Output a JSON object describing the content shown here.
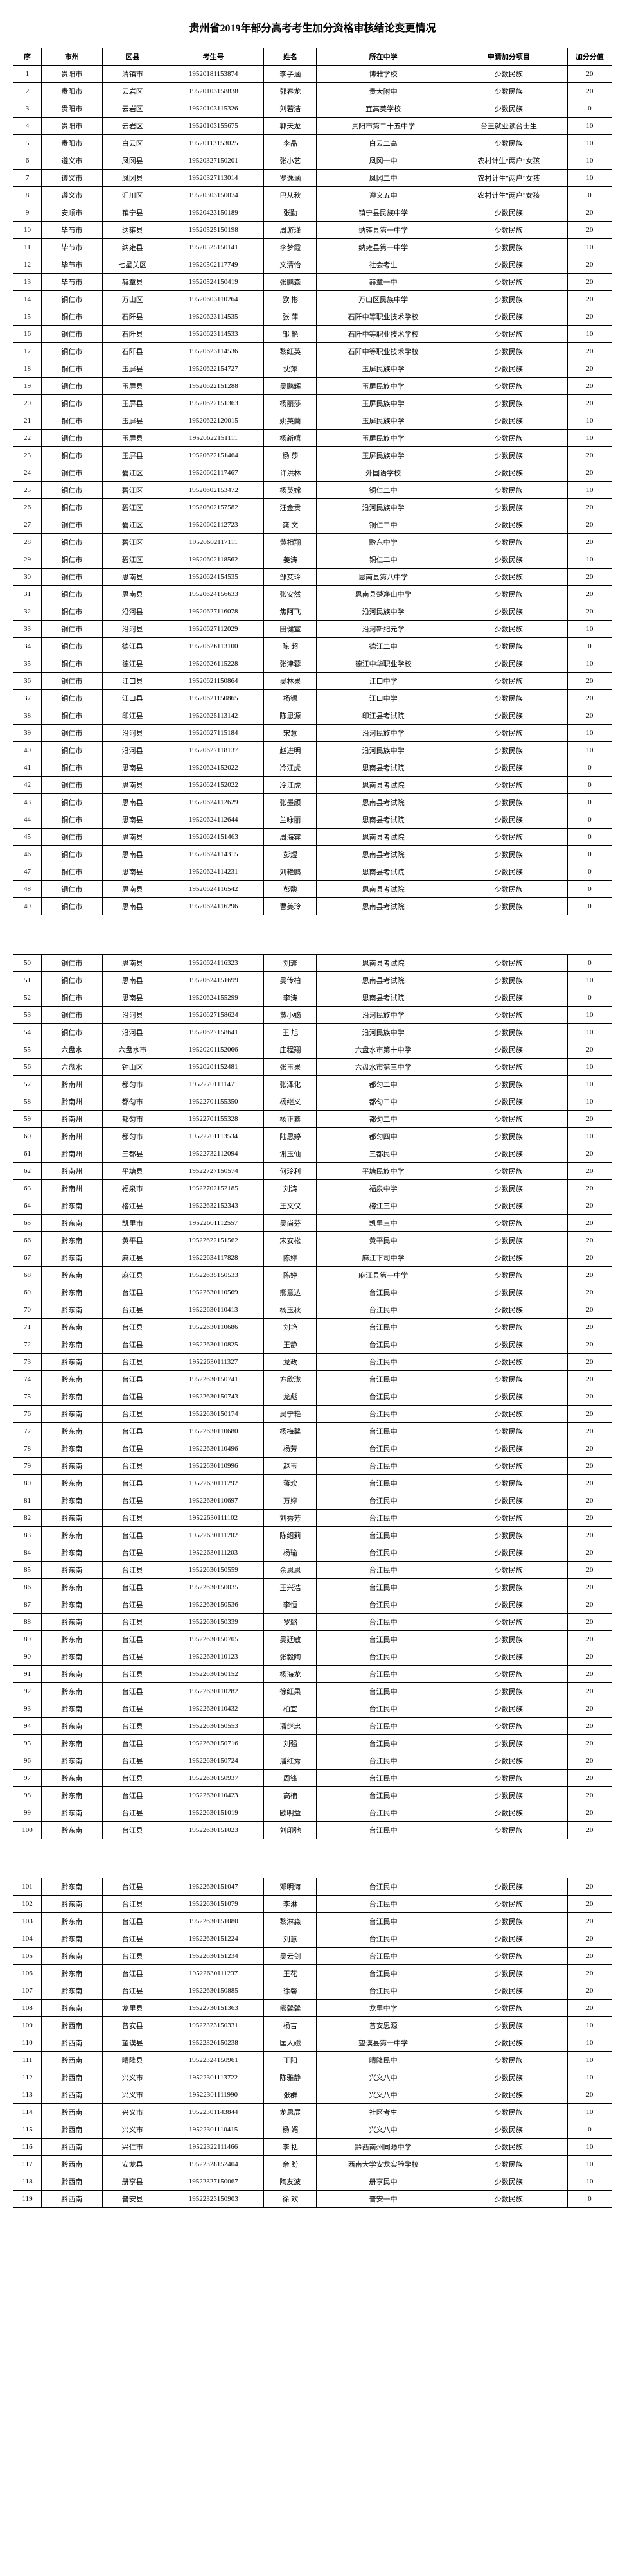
{
  "title": "贵州省2019年部分高考考生加分资格审核结论变更情况",
  "headers": [
    "序",
    "市州",
    "区县",
    "考生号",
    "姓名",
    "所在中学",
    "申请加分项目",
    "加分分值"
  ],
  "rows": [
    [
      1,
      "贵阳市",
      "清镇市",
      "19520181153874",
      "李子涵",
      "博雅学校",
      "少数民族",
      20
    ],
    [
      2,
      "贵阳市",
      "云岩区",
      "19520103158838",
      "郭春龙",
      "贵大附中",
      "少数民族",
      20
    ],
    [
      3,
      "贵阳市",
      "云岩区",
      "19520103115326",
      "刘若洁",
      "宜高美学校",
      "少数民族",
      0
    ],
    [
      4,
      "贵阳市",
      "云岩区",
      "19520103155675",
      "郭天龙",
      "贵阳市第二十五中学",
      "台王就业读台士生",
      10
    ],
    [
      5,
      "贵阳市",
      "白云区",
      "19520113153025",
      "李晶",
      "白云二高",
      "少数民族",
      10
    ],
    [
      6,
      "遵义市",
      "凤冈县",
      "19520327150201",
      "张小艺",
      "凤冈一中",
      "农村计生\"两户\"女孩",
      10
    ],
    [
      7,
      "遵义市",
      "凤冈县",
      "19520327113014",
      "罗逸涵",
      "凤冈二中",
      "农村计生\"两户\"女孩",
      10
    ],
    [
      8,
      "遵义市",
      "汇川区",
      "19520303150074",
      "巴从秋",
      "遵义五中",
      "农村计生\"两户\"女孩",
      0
    ],
    [
      9,
      "安顺市",
      "镇宁县",
      "19520423150189",
      "张勤",
      "镇宁县民族中学",
      "少数民族",
      20
    ],
    [
      10,
      "毕节市",
      "纳雍县",
      "19520525150198",
      "周游瑾",
      "纳雍县第一中学",
      "少数民族",
      20
    ],
    [
      11,
      "毕节市",
      "纳雍县",
      "19520525150141",
      "李梦霞",
      "纳雍县第一中学",
      "少数民族",
      10
    ],
    [
      12,
      "毕节市",
      "七星关区",
      "19520502117749",
      "文清怡",
      "社会考生",
      "少数民族",
      20
    ],
    [
      13,
      "毕节市",
      "赫章县",
      "19520524150419",
      "张鹏森",
      "赫章一中",
      "少数民族",
      20
    ],
    [
      14,
      "铜仁市",
      "万山区",
      "19520603110264",
      "欧 彬",
      "万山区民族中学",
      "少数民族",
      20
    ],
    [
      15,
      "铜仁市",
      "石阡县",
      "19520623114535",
      "张 萍",
      "石阡中等职业技术学校",
      "少数民族",
      20
    ],
    [
      16,
      "铜仁市",
      "石阡县",
      "19520623114533",
      "邹 艳",
      "石阡中等职业技术学校",
      "少数民族",
      10
    ],
    [
      17,
      "铜仁市",
      "石阡县",
      "19520623114536",
      "黎红英",
      "石阡中等职业技术学校",
      "少数民族",
      20
    ],
    [
      18,
      "铜仁市",
      "玉屏县",
      "19520622154727",
      "沈萍",
      "玉屏民族中学",
      "少数民族",
      20
    ],
    [
      19,
      "铜仁市",
      "玉屏县",
      "19520622151288",
      "吴鹏辉",
      "玉屏民族中学",
      "少数民族",
      20
    ],
    [
      20,
      "铜仁市",
      "玉屏县",
      "19520622151363",
      "杨丽莎",
      "玉屏民族中学",
      "少数民族",
      20
    ],
    [
      21,
      "铜仁市",
      "玉屏县",
      "19520622120015",
      "姚英蘭",
      "玉屏民族中学",
      "少数民族",
      10
    ],
    [
      22,
      "铜仁市",
      "玉屏县",
      "19520622151111",
      "杨新嘻",
      "玉屏民族中学",
      "少数民族",
      10
    ],
    [
      23,
      "铜仁市",
      "玉屏县",
      "19520622151464",
      "杨 莎",
      "玉屏民族中学",
      "少数民族",
      20
    ],
    [
      24,
      "铜仁市",
      "碧江区",
      "19520602117467",
      "许洪林",
      "外国语学校",
      "少数民族",
      20
    ],
    [
      25,
      "铜仁市",
      "碧江区",
      "19520602153472",
      "杨英嫦",
      "铜仁二中",
      "少数民族",
      10
    ],
    [
      26,
      "铜仁市",
      "碧江区",
      "19520602157582",
      "汪金贵",
      "沿河民族中学",
      "少数民族",
      20
    ],
    [
      27,
      "铜仁市",
      "碧江区",
      "19520602112723",
      "龚 文",
      "铜仁二中",
      "少数民族",
      20
    ],
    [
      28,
      "铜仁市",
      "碧江区",
      "19520602117111",
      "黄相翔",
      "黔东中学",
      "少数民族",
      20
    ],
    [
      29,
      "铜仁市",
      "碧江区",
      "19520602118562",
      "姜涛",
      "铜仁二中",
      "少数民族",
      10
    ],
    [
      30,
      "铜仁市",
      "思南县",
      "19520624154535",
      "邹艾玲",
      "思南县第八中学",
      "少数民族",
      20
    ],
    [
      31,
      "铜仁市",
      "思南县",
      "19520624156633",
      "张安然",
      "思南县楚净山中学",
      "少数民族",
      20
    ],
    [
      32,
      "铜仁市",
      "沿河县",
      "19520627116078",
      "焦阿飞",
      "沿河民族中学",
      "少数民族",
      20
    ],
    [
      33,
      "铜仁市",
      "沿河县",
      "19520627112029",
      "田健室",
      "沿河新纪元学",
      "少数民族",
      10
    ],
    [
      34,
      "铜仁市",
      "德江县",
      "19520626113100",
      "陈 超",
      "德江二中",
      "少数民族",
      0
    ],
    [
      35,
      "铜仁市",
      "德江县",
      "19520626115228",
      "张津蓉",
      "德江中华职业学校",
      "少数民族",
      10
    ],
    [
      36,
      "铜仁市",
      "江口县",
      "19520621150864",
      "吴林果",
      "江口中学",
      "少数民族",
      20
    ],
    [
      37,
      "铜仁市",
      "江口县",
      "19520621150865",
      "杨镖",
      "江口中学",
      "少数民族",
      20
    ],
    [
      38,
      "铜仁市",
      "印江县",
      "19520625113142",
      "陈思源",
      "印江县考试院",
      "少数民族",
      20
    ],
    [
      39,
      "铜仁市",
      "沿河县",
      "19520627115184",
      "宋意",
      "沿河民族中学",
      "少数民族",
      10
    ],
    [
      40,
      "铜仁市",
      "沿河县",
      "19520627118137",
      "赵进明",
      "沿河民族中学",
      "少数民族",
      10
    ],
    [
      41,
      "铜仁市",
      "思南县",
      "19520624152022",
      "冷江虎",
      "思南县考试院",
      "少数民族",
      0
    ],
    [
      42,
      "铜仁市",
      "思南县",
      "19520624152022",
      "冷江虎",
      "思南县考试院",
      "少数民族",
      0
    ],
    [
      43,
      "铜仁市",
      "思南县",
      "19520624112629",
      "张墨颀",
      "思南县考试院",
      "少数民族",
      0
    ],
    [
      44,
      "铜仁市",
      "思南县",
      "19520624112644",
      "兰咏丽",
      "思南县考试院",
      "少数民族",
      0
    ],
    [
      45,
      "铜仁市",
      "思南县",
      "19520624151463",
      "周海宾",
      "思南县考试院",
      "少数民族",
      0
    ],
    [
      46,
      "铜仁市",
      "思南县",
      "19520624114315",
      "彭煜",
      "思南县考试院",
      "少数民族",
      0
    ],
    [
      47,
      "铜仁市",
      "思南县",
      "19520624114231",
      "刘艳鹏",
      "思南县考试院",
      "少数民族",
      0
    ],
    [
      48,
      "铜仁市",
      "思南县",
      "19520624116542",
      "彭馥",
      "思南县考试院",
      "少数民族",
      0
    ],
    [
      49,
      "铜仁市",
      "思南县",
      "19520624116296",
      "曹美玲",
      "思南县考试院",
      "少数民族",
      0
    ],
    [
      50,
      "铜仁市",
      "思南县",
      "19520624116323",
      "刘寰",
      "思南县考试院",
      "少数民族",
      0
    ],
    [
      51,
      "铜仁市",
      "思南县",
      "19520624151699",
      "吴传柏",
      "思南县考试院",
      "少数民族",
      10
    ],
    [
      52,
      "铜仁市",
      "思南县",
      "19520624155299",
      "李涛",
      "思南县考试院",
      "少数民族",
      0
    ],
    [
      53,
      "铜仁市",
      "沿河县",
      "19520627158624",
      "黄小嫡",
      "沿河民族中学",
      "少数民族",
      10
    ],
    [
      54,
      "铜仁市",
      "沿河县",
      "19520627158641",
      "王 旭",
      "沿河民族中学",
      "少数民族",
      10
    ],
    [
      55,
      "六盘水",
      "六盘水市",
      "19520201152066",
      "庄程翔",
      "六盘水市第十中学",
      "少数民族",
      20
    ],
    [
      56,
      "六盘水",
      "钟山区",
      "19520201152481",
      "张玉果",
      "六盘水市第三中学",
      "少数民族",
      10
    ],
    [
      57,
      "黔南州",
      "都匀市",
      "19522701111471",
      "张泽化",
      "都匀二中",
      "少数民族",
      10
    ],
    [
      58,
      "黔南州",
      "都匀市",
      "19522701155350",
      "杨继义",
      "都匀二中",
      "少数民族",
      10
    ],
    [
      59,
      "黔南州",
      "都匀市",
      "19522701155328",
      "杨正鑫",
      "都匀二中",
      "少数民族",
      20
    ],
    [
      60,
      "黔南州",
      "都匀市",
      "19522701113534",
      "陆思婷",
      "都匀四中",
      "少数民族",
      10
    ],
    [
      61,
      "黔南州",
      "三都县",
      "19522732112094",
      "谢玉仙",
      "三都民中",
      "少数民族",
      20
    ],
    [
      62,
      "黔南州",
      "平塘县",
      "19522727150574",
      "何玲利",
      "平塘民族中学",
      "少数民族",
      20
    ],
    [
      63,
      "黔南州",
      "福泉市",
      "19522702152185",
      "刘涛",
      "福泉中学",
      "少数民族",
      20
    ],
    [
      64,
      "黔东南",
      "榕江县",
      "19522632152343",
      "王文仪",
      "榕江三中",
      "少数民族",
      20
    ],
    [
      65,
      "黔东南",
      "凯里市",
      "19522601112557",
      "吴尚芬",
      "凯里三中",
      "少数民族",
      20
    ],
    [
      66,
      "黔东南",
      "黄平县",
      "19522622151562",
      "宋安松",
      "黄平民中",
      "少数民族",
      20
    ],
    [
      67,
      "黔东南",
      "麻江县",
      "19522634117828",
      "陈婷",
      "麻江下司中学",
      "少数民族",
      20
    ],
    [
      68,
      "黔东南",
      "麻江县",
      "19522635150533",
      "陈婷",
      "麻江县第一中学",
      "少数民族",
      20
    ],
    [
      69,
      "黔东南",
      "台江县",
      "19522630110569",
      "熊意达",
      "台江民中",
      "少数民族",
      20
    ],
    [
      70,
      "黔东南",
      "台江县",
      "19522630110413",
      "杨玉秋",
      "台江民中",
      "少数民族",
      20
    ],
    [
      71,
      "黔东南",
      "台江县",
      "19522630110686",
      "刘艳",
      "台江民中",
      "少数民族",
      20
    ],
    [
      72,
      "黔东南",
      "台江县",
      "19522630110825",
      "王静",
      "台江民中",
      "少数民族",
      20
    ],
    [
      73,
      "黔东南",
      "台江县",
      "19522630111327",
      "龙政",
      "台江民中",
      "少数民族",
      20
    ],
    [
      74,
      "黔东南",
      "台江县",
      "19522630150741",
      "方欣珑",
      "台江民中",
      "少数民族",
      20
    ],
    [
      75,
      "黔东南",
      "台江县",
      "19522630150743",
      "龙彪",
      "台江民中",
      "少数民族",
      20
    ],
    [
      76,
      "黔东南",
      "台江县",
      "19522630150174",
      "吴宁艳",
      "台江民中",
      "少数民族",
      20
    ],
    [
      77,
      "黔东南",
      "台江县",
      "19522630110680",
      "杨梅馨",
      "台江民中",
      "少数民族",
      20
    ],
    [
      78,
      "黔东南",
      "台江县",
      "19522630110496",
      "杨芳",
      "台江民中",
      "少数民族",
      20
    ],
    [
      79,
      "黔东南",
      "台江县",
      "19522630110996",
      "赵玉",
      "台江民中",
      "少数民族",
      20
    ],
    [
      80,
      "黔东南",
      "台江县",
      "19522630111292",
      "蒋欢",
      "台江民中",
      "少数民族",
      20
    ],
    [
      81,
      "黔东南",
      "台江县",
      "19522630110697",
      "万婷",
      "台江民中",
      "少数民族",
      20
    ],
    [
      82,
      "黔东南",
      "台江县",
      "19522630111102",
      "刘秀芳",
      "台江民中",
      "少数民族",
      20
    ],
    [
      83,
      "黔东南",
      "台江县",
      "19522630111202",
      "陈绍莉",
      "台江民中",
      "少数民族",
      20
    ],
    [
      84,
      "黔东南",
      "台江县",
      "19522630111203",
      "杨瑜",
      "台江民中",
      "少数民族",
      20
    ],
    [
      85,
      "黔东南",
      "台江县",
      "19522630150559",
      "余思思",
      "台江民中",
      "少数民族",
      20
    ],
    [
      86,
      "黔东南",
      "台江县",
      "19522630150035",
      "王兴浩",
      "台江民中",
      "少数民族",
      20
    ],
    [
      87,
      "黔东南",
      "台江县",
      "19522630150536",
      "李恒",
      "台江民中",
      "少数民族",
      20
    ],
    [
      88,
      "黔东南",
      "台江县",
      "19522630150339",
      "罗璐",
      "台江民中",
      "少数民族",
      20
    ],
    [
      89,
      "黔东南",
      "台江县",
      "19522630150705",
      "吴廷敏",
      "台江民中",
      "少数民族",
      20
    ],
    [
      90,
      "黔东南",
      "台江县",
      "19522630110123",
      "张毅陶",
      "台江民中",
      "少数民族",
      20
    ],
    [
      91,
      "黔东南",
      "台江县",
      "19522630150152",
      "杨海龙",
      "台江民中",
      "少数民族",
      20
    ],
    [
      92,
      "黔东南",
      "台江县",
      "19522630110282",
      "徐红果",
      "台江民中",
      "少数民族",
      20
    ],
    [
      93,
      "黔东南",
      "台江县",
      "19522630110432",
      "柏宜",
      "台江民中",
      "少数民族",
      20
    ],
    [
      94,
      "黔东南",
      "台江县",
      "19522630150553",
      "潘继忠",
      "台江民中",
      "少数民族",
      20
    ],
    [
      95,
      "黔东南",
      "台江县",
      "19522630150716",
      "刘强",
      "台江民中",
      "少数民族",
      20
    ],
    [
      96,
      "黔东南",
      "台江县",
      "19522630150724",
      "潘红秀",
      "台江民中",
      "少数民族",
      20
    ],
    [
      97,
      "黔东南",
      "台江县",
      "19522630150937",
      "周锋",
      "台江民中",
      "少数民族",
      20
    ],
    [
      98,
      "黔东南",
      "台江县",
      "19522630110423",
      "高楠",
      "台江民中",
      "少数民族",
      20
    ],
    [
      99,
      "黔东南",
      "台江县",
      "19522630151019",
      "欧明益",
      "台江民中",
      "少数民族",
      20
    ],
    [
      100,
      "黔东南",
      "台江县",
      "19522630151023",
      "刘印弛",
      "台江民中",
      "少数民族",
      20
    ],
    [
      101,
      "黔东南",
      "台江县",
      "19522630151047",
      "邓明海",
      "台江民中",
      "少数民族",
      20
    ],
    [
      102,
      "黔东南",
      "台江县",
      "19522630151079",
      "李淋",
      "台江民中",
      "少数民族",
      20
    ],
    [
      103,
      "黔东南",
      "台江县",
      "19522630151080",
      "黎淋淼",
      "台江民中",
      "少数民族",
      20
    ],
    [
      104,
      "黔东南",
      "台江县",
      "19522630151224",
      "刘慧",
      "台江民中",
      "少数民族",
      20
    ],
    [
      105,
      "黔东南",
      "台江县",
      "19522630151234",
      "吴云剑",
      "台江民中",
      "少数民族",
      20
    ],
    [
      106,
      "黔东南",
      "台江县",
      "19522630111237",
      "王花",
      "台江民中",
      "少数民族",
      20
    ],
    [
      107,
      "黔东南",
      "台江县",
      "19522630150885",
      "徐馨",
      "台江民中",
      "少数民族",
      20
    ],
    [
      108,
      "黔东南",
      "龙里县",
      "19522730151363",
      "熊馨馨",
      "龙里中学",
      "少数民族",
      20
    ],
    [
      109,
      "黔西南",
      "普安县",
      "19522323150331",
      "杨吉",
      "普安思源",
      "少数民族",
      10
    ],
    [
      110,
      "黔西南",
      "望谟县",
      "19522326150238",
      "匡人磁",
      "望谟县第一中学",
      "少数民族",
      10
    ],
    [
      111,
      "黔西南",
      "晴隆县",
      "19522324150961",
      "丁阳",
      "晴隆民中",
      "少数民族",
      10
    ],
    [
      112,
      "黔西南",
      "兴义市",
      "19522301113722",
      "陈雅静",
      "兴义八中",
      "少数民族",
      10
    ],
    [
      113,
      "黔西南",
      "兴义市",
      "19522301111990",
      "张群",
      "兴义八中",
      "少数民族",
      20
    ],
    [
      114,
      "黔西南",
      "兴义市",
      "19522301143844",
      "龙思展",
      "社区考生",
      "少数民族",
      10
    ],
    [
      115,
      "黔西南",
      "兴义市",
      "19522301110415",
      "杨 媚",
      "兴义八中",
      "少数民族",
      0
    ],
    [
      116,
      "黔西南",
      "兴仁市",
      "19522322111466",
      "李 括",
      "黔西南州同源中学",
      "少数民族",
      10
    ],
    [
      117,
      "黔西南",
      "安龙县",
      "19522328152404",
      "余 盼",
      "西南大学安龙实验学校",
      "少数民族",
      10
    ],
    [
      118,
      "黔西南",
      "册亨县",
      "19522327150067",
      "陶友波",
      "册亨民中",
      "少数民族",
      10
    ],
    [
      119,
      "黔西南",
      "普安县",
      "19522323150903",
      "徐 欢",
      "普安一中",
      "少数民族",
      0
    ]
  ],
  "page_breaks": [
    49,
    100
  ]
}
